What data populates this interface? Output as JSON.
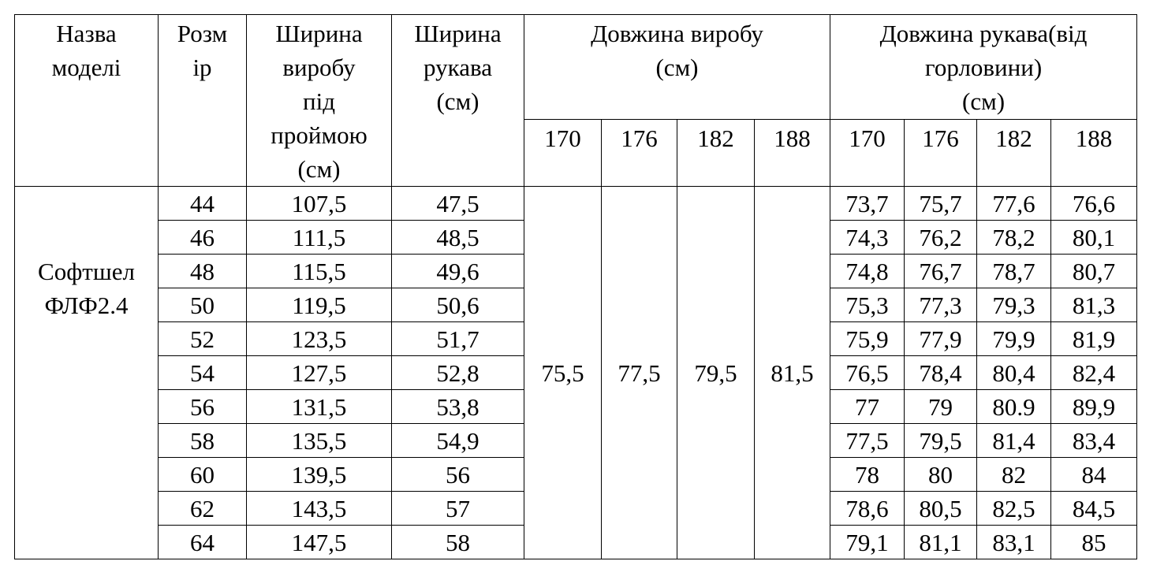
{
  "table": {
    "headers": {
      "model": "Назва\nмоделі",
      "size": "Розм\nір",
      "body_width": "Ширина\nвиробу\nпід\nпроймою\n(см)",
      "sleeve_width": "Ширина\nрукава\n(см)",
      "product_length": "Довжина виробу\n(см)",
      "sleeve_length": "Довжина рукава(від\nгорловини)\n(см)",
      "heights_product": [
        "170",
        "176",
        "182",
        "188"
      ],
      "heights_sleeve": [
        "170",
        "176",
        "182",
        "188"
      ]
    },
    "model": "Софтшел\nФЛФ2.4",
    "product_lengths": [
      "75,5",
      "77,5",
      "79,5",
      "81,5"
    ],
    "rows": [
      [
        "44",
        "107,5",
        "47,5",
        "73,7",
        "75,7",
        "77,6",
        "76,6"
      ],
      [
        "46",
        "111,5",
        "48,5",
        "74,3",
        "76,2",
        "78,2",
        "80,1"
      ],
      [
        "48",
        "115,5",
        "49,6",
        "74,8",
        "76,7",
        "78,7",
        "80,7"
      ],
      [
        "50",
        "119,5",
        "50,6",
        "75,3",
        "77,3",
        "79,3",
        "81,3"
      ],
      [
        "52",
        "123,5",
        "51,7",
        "75,9",
        "77,9",
        "79,9",
        "81,9"
      ],
      [
        "54",
        "127,5",
        "52,8",
        "76,5",
        "78,4",
        "80,4",
        "82,4"
      ],
      [
        "56",
        "131,5",
        "53,8",
        "77",
        "79",
        "80.9",
        "89,9"
      ],
      [
        "58",
        "135,5",
        "54,9",
        "77,5",
        "79,5",
        "81,4",
        "83,4"
      ],
      [
        "60",
        "139,5",
        "56",
        "78",
        "80",
        "82",
        "84"
      ],
      [
        "62",
        "143,5",
        "57",
        "78,6",
        "80,5",
        "82,5",
        "84,5"
      ],
      [
        "64",
        "147,5",
        "58",
        "79,1",
        "81,1",
        "83,1",
        "85"
      ]
    ]
  }
}
